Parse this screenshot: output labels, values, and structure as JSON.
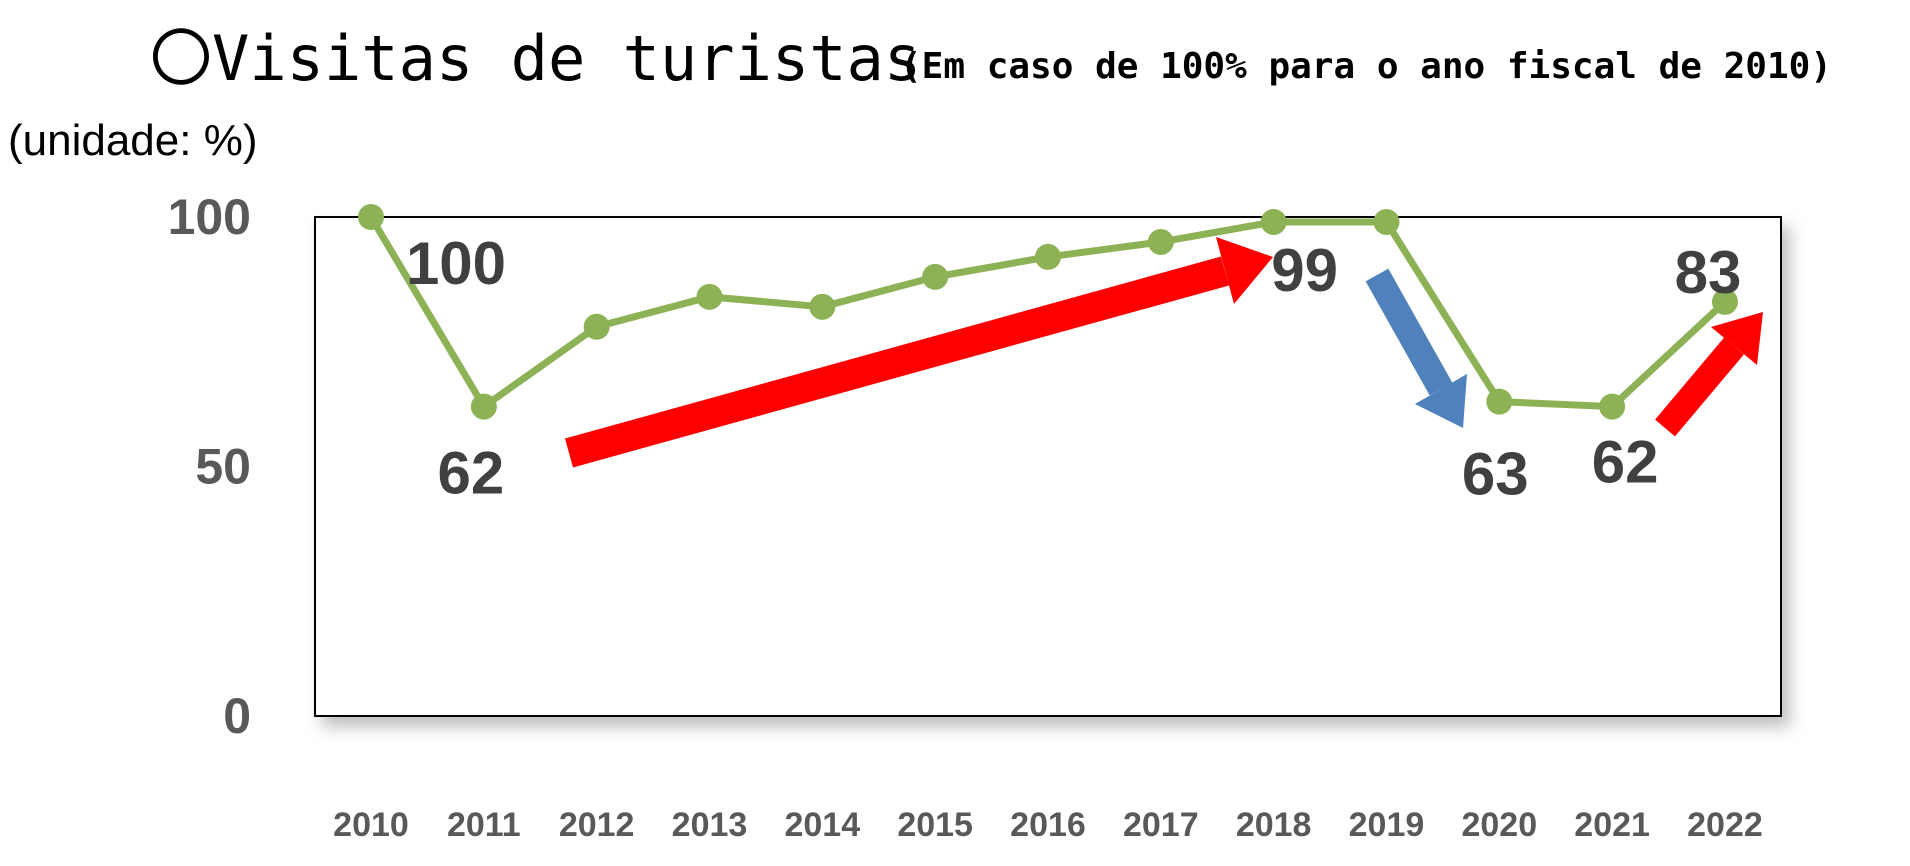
{
  "chart_data": {
    "type": "line",
    "title": "〇Visitas de turistas",
    "subtitle": "(Em caso de 100% para o ano fiscal de 2010)",
    "y_axis_label": "(unidade: %)",
    "categories": [
      "2010",
      "2011",
      "2012",
      "2013",
      "2014",
      "2015",
      "2016",
      "2017",
      "2018",
      "2019",
      "2020",
      "2021",
      "2022"
    ],
    "series": [
      {
        "color": "#8db255",
        "values": [
          100,
          62,
          78,
          84,
          82,
          88,
          92,
          95,
          99,
          99,
          63,
          62,
          83
        ]
      }
    ],
    "labeled_points": [
      0,
      1,
      8,
      10,
      11,
      12
    ],
    "ylim": [
      0,
      100
    ],
    "yticks": [
      0,
      50,
      100
    ],
    "grid": false
  }
}
